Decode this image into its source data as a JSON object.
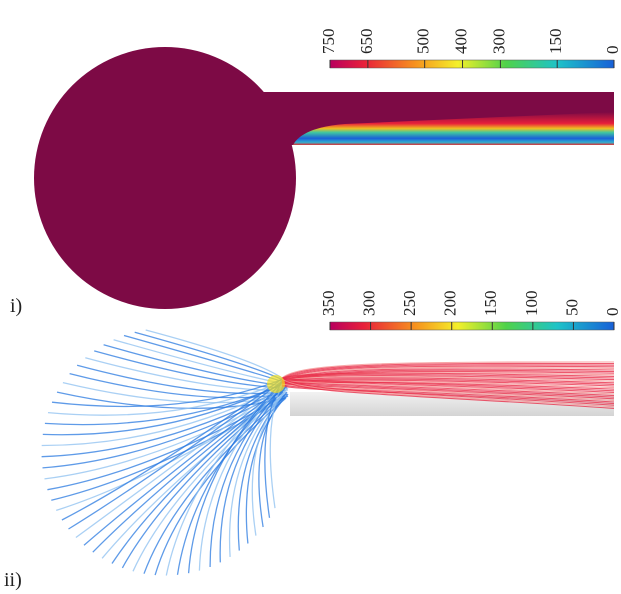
{
  "panels": [
    {
      "label": "i)",
      "colorbar": {
        "range": [
          750,
          0
        ],
        "ticks": [
          750,
          650,
          500,
          400,
          300,
          150,
          0
        ]
      }
    },
    {
      "label": "ii)",
      "colorbar": {
        "range": [
          350,
          0
        ],
        "ticks": [
          350,
          300,
          250,
          200,
          150,
          100,
          50,
          0
        ]
      }
    }
  ]
}
